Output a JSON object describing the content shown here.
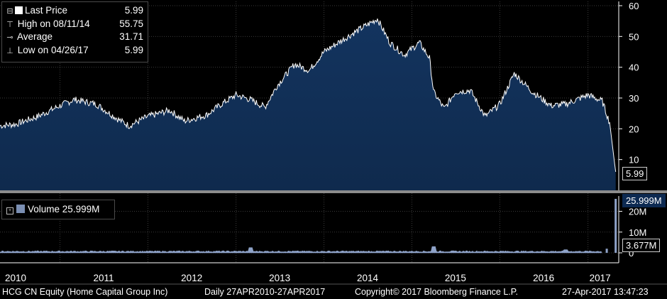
{
  "legend": {
    "items": [
      {
        "icon": "square-icon",
        "label": "Last Price",
        "value": "5.99"
      },
      {
        "icon": "high-marker-icon",
        "label": "High on 08/11/14",
        "value": "55.75"
      },
      {
        "icon": "average-marker-icon",
        "label": "Average",
        "value": "31.71"
      },
      {
        "icon": "low-marker-icon",
        "label": "Low on 04/26/17",
        "value": "5.99"
      }
    ]
  },
  "volume_legend": {
    "label": "Volume",
    "value": "25.999M"
  },
  "price_tag": "5.99",
  "volume_tag_high": "25.999M",
  "volume_tag_avg": "3.677M",
  "footer": {
    "security": "HCG CN Equity (Home Capital Group Inc)",
    "range": "Daily 27APR2010-27APR2017",
    "copyright": "Copyright© 2017 Bloomberg Finance L.P.",
    "timestamp": "27-Apr-2017 13:47:23"
  },
  "colors": {
    "area_fill": "#0f2a4d",
    "area_fill_top": "#13345f",
    "line": "#ffffff",
    "grid": "#3a3a3a",
    "volume": "#8ea2c8",
    "separator": "#8c8c8c"
  },
  "chart_data": [
    {
      "type": "area",
      "x_start": "2010-04-27",
      "x_end": "2017-04-27",
      "ylim": [
        0,
        60
      ],
      "yticks": [
        10,
        20,
        30,
        40,
        50,
        60
      ],
      "xticks": [
        "2010",
        "2011",
        "2012",
        "2013",
        "2014",
        "2015",
        "2016",
        "2017"
      ],
      "series": [
        {
          "name": "Last Price",
          "points": [
            [
              "2010-04-27",
              21
            ],
            [
              "2010-07-01",
              21.5
            ],
            [
              "2010-10-01",
              24
            ],
            [
              "2011-01-01",
              27.5
            ],
            [
              "2011-03-01",
              29.5
            ],
            [
              "2011-06-01",
              28
            ],
            [
              "2011-09-01",
              23
            ],
            [
              "2011-10-15",
              21
            ],
            [
              "2012-01-01",
              24
            ],
            [
              "2012-04-01",
              26
            ],
            [
              "2012-06-01",
              22.5
            ],
            [
              "2012-09-01",
              24.5
            ],
            [
              "2012-11-01",
              28
            ],
            [
              "2013-01-01",
              31
            ],
            [
              "2013-03-01",
              29.5
            ],
            [
              "2013-05-01",
              27
            ],
            [
              "2013-06-20",
              34
            ],
            [
              "2013-09-01",
              41
            ],
            [
              "2013-11-01",
              39
            ],
            [
              "2014-01-01",
              45
            ],
            [
              "2014-03-01",
              48
            ],
            [
              "2014-05-01",
              51
            ],
            [
              "2014-08-11",
              55.75
            ],
            [
              "2014-10-01",
              48
            ],
            [
              "2014-12-01",
              44
            ],
            [
              "2015-02-01",
              48
            ],
            [
              "2015-03-15",
              43
            ],
            [
              "2015-04-01",
              32
            ],
            [
              "2015-05-15",
              26.5
            ],
            [
              "2015-07-01",
              32
            ],
            [
              "2015-09-01",
              32.5
            ],
            [
              "2015-11-01",
              24
            ],
            [
              "2016-01-01",
              28
            ],
            [
              "2016-03-01",
              38
            ],
            [
              "2016-05-15",
              32
            ],
            [
              "2016-08-01",
              27.5
            ],
            [
              "2016-10-01",
              28
            ],
            [
              "2017-01-01",
              31
            ],
            [
              "2017-03-01",
              29
            ],
            [
              "2017-04-01",
              22
            ],
            [
              "2017-04-26",
              5.99
            ]
          ]
        }
      ]
    },
    {
      "type": "bar",
      "name": "Volume",
      "ylim": [
        0,
        26
      ],
      "yticks": [
        "10M",
        "20M"
      ],
      "series": [
        {
          "name": "Volume",
          "points": [
            [
              "2010-04-27",
              0.4
            ],
            [
              "2013-03-01",
              2.5
            ],
            [
              "2015-04-01",
              3.0
            ],
            [
              "2016-10-01",
              1.5
            ],
            [
              "2017-03-20",
              2.0
            ],
            [
              "2017-04-26",
              25.999
            ]
          ]
        }
      ]
    }
  ]
}
